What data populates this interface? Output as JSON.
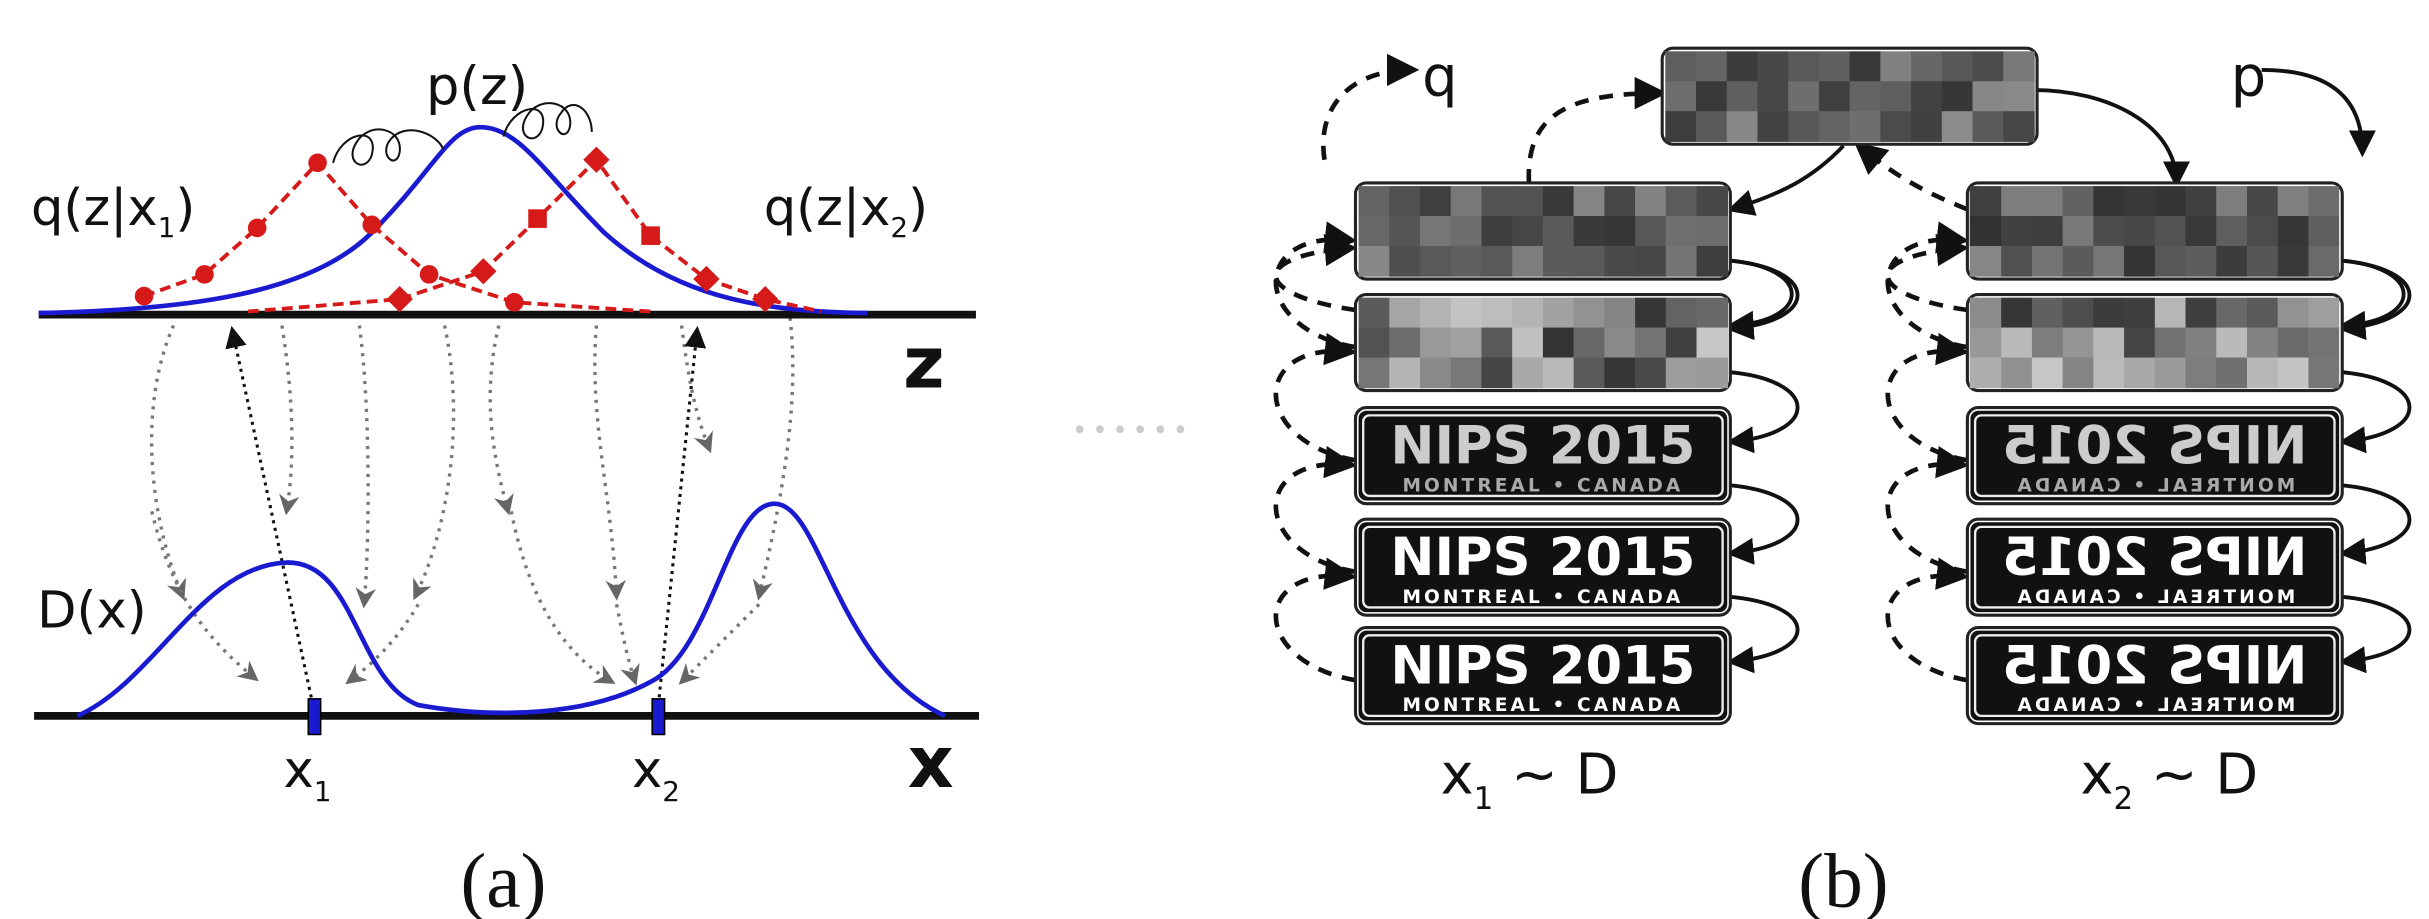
{
  "panel_a": {
    "caption": "(a)",
    "prior_label": "p(z)",
    "posterior_1": {
      "base": "q(z|x",
      "sub": "1",
      "end": ")"
    },
    "posterior_2": {
      "base": "q(z|x",
      "sub": "2",
      "end": ")"
    },
    "latent_axis": "z",
    "density_label": "D(x)",
    "data_axis": "x",
    "point_1": {
      "base": "x",
      "sub": "1"
    },
    "point_2": {
      "base": "x",
      "sub": "2"
    }
  },
  "panel_b": {
    "caption": "(b)",
    "encoder_label": "q",
    "decoder_label": "p",
    "sample_1": {
      "base": "x",
      "sub": "1",
      "end": " ~ D"
    },
    "sample_2": {
      "base": "x",
      "sub": "2",
      "end": " ~ D"
    },
    "image_title": "NIPS 2015",
    "image_subtitle": "MONTREAL • CANADA"
  }
}
